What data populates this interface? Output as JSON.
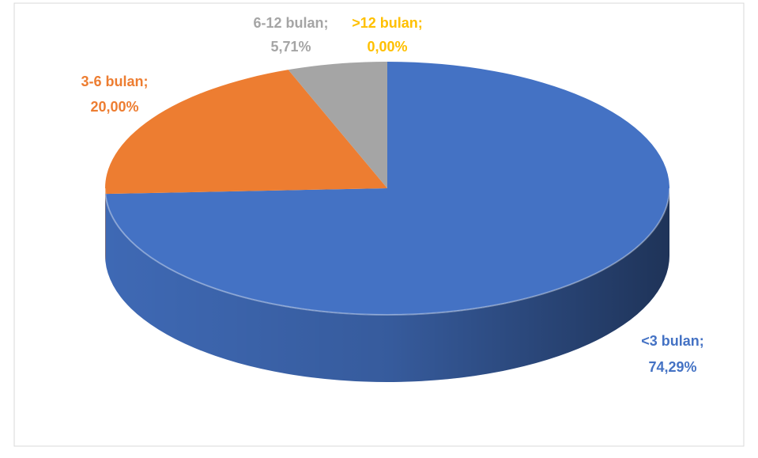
{
  "chart_data": {
    "type": "pie3d",
    "categories": [
      "<3 bulan",
      "3-6 bulan",
      "6-12 bulan",
      ">12 bulan"
    ],
    "separator": ";",
    "values": [
      74.29,
      20.0,
      5.71,
      0.0
    ],
    "value_labels": [
      "74,29%",
      "20,00%",
      "5,71%",
      "0,00%"
    ],
    "colors": [
      "#4472c4",
      "#ed7d31",
      "#a5a5a5",
      "#ffc000"
    ]
  }
}
